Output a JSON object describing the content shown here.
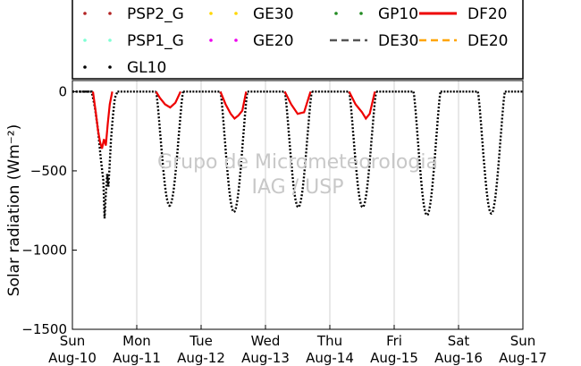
{
  "chart_data": {
    "type": "line",
    "title": "",
    "xlabel": "",
    "ylabel": "Solar radiation (Wm⁻²)",
    "ylim": [
      -1500,
      70
    ],
    "xlim": [
      0,
      7
    ],
    "yticks": [
      0,
      -500,
      -1000,
      -1500
    ],
    "xticks": [
      {
        "x": 0,
        "day": "Sun",
        "date": "Aug-10"
      },
      {
        "x": 1,
        "day": "Mon",
        "date": "Aug-11"
      },
      {
        "x": 2,
        "day": "Tue",
        "date": "Aug-12"
      },
      {
        "x": 3,
        "day": "Wed",
        "date": "Aug-13"
      },
      {
        "x": 4,
        "day": "Thu",
        "date": "Aug-14"
      },
      {
        "x": 5,
        "day": "Fri",
        "date": "Aug-15"
      },
      {
        "x": 6,
        "day": "Sat",
        "date": "Aug-16"
      },
      {
        "x": 7,
        "day": "Sun",
        "date": "Aug-17"
      }
    ],
    "grid": "vertical",
    "legend": {
      "placement": "top",
      "columns": 4,
      "entries": [
        {
          "name": "PSP2_G",
          "color": "#b22222",
          "style": "dotted"
        },
        {
          "name": "GE30",
          "color": "#ffd700",
          "style": "dotted"
        },
        {
          "name": "GP10",
          "color": "#228b22",
          "style": "dotted"
        },
        {
          "name": "DF20",
          "color": "#ee0000",
          "style": "solid"
        },
        {
          "name": "PSP1_G",
          "color": "#7fffd4",
          "style": "dotted"
        },
        {
          "name": "GE20",
          "color": "#ee00ee",
          "style": "dotted"
        },
        {
          "name": "DE30",
          "color": "#555555",
          "style": "dashed"
        },
        {
          "name": "DE20",
          "color": "#ffa500",
          "style": "dashed"
        },
        {
          "name": "GL10",
          "color": "#000000",
          "style": "dotted"
        }
      ]
    },
    "watermark": [
      "Grupo de Micrometeorologia",
      "IAG / USP"
    ],
    "series": [
      {
        "name": "GL10",
        "color": "#000000",
        "style": "dotted",
        "points": [
          [
            0.0,
            0
          ],
          [
            0.3,
            0
          ],
          [
            0.35,
            -100
          ],
          [
            0.4,
            -250
          ],
          [
            0.44,
            -420
          ],
          [
            0.48,
            -560
          ],
          [
            0.5,
            -800
          ],
          [
            0.52,
            -650
          ],
          [
            0.54,
            -520
          ],
          [
            0.56,
            -600
          ],
          [
            0.58,
            -450
          ],
          [
            0.6,
            -300
          ],
          [
            0.63,
            -150
          ],
          [
            0.66,
            -40
          ],
          [
            0.7,
            0
          ]
        ],
        "days": [
          {
            "start": 1.3,
            "peak_x": 1.5,
            "peak": -720,
            "end": 1.72
          },
          {
            "start": 2.3,
            "peak_x": 2.5,
            "peak": -760,
            "end": 2.72
          },
          {
            "start": 3.3,
            "peak_x": 3.5,
            "peak": -730,
            "end": 3.72
          },
          {
            "start": 4.3,
            "peak_x": 4.5,
            "peak": -730,
            "end": 4.72
          },
          {
            "start": 5.3,
            "peak_x": 5.5,
            "peak": -780,
            "end": 5.72
          },
          {
            "start": 6.3,
            "peak_x": 6.5,
            "peak": -770,
            "end": 6.72
          }
        ]
      },
      {
        "name": "DF20",
        "color": "#ee0000",
        "style": "solid",
        "points": [
          [
            0.32,
            0
          ],
          [
            0.36,
            -120
          ],
          [
            0.4,
            -250
          ],
          [
            0.43,
            -320
          ],
          [
            0.46,
            -360
          ],
          [
            0.49,
            -300
          ],
          [
            0.52,
            -340
          ],
          [
            0.55,
            -200
          ],
          [
            0.58,
            -80
          ],
          [
            0.62,
            0
          ],
          [
            1.3,
            0
          ],
          [
            1.36,
            -40
          ],
          [
            1.44,
            -80
          ],
          [
            1.52,
            -100
          ],
          [
            1.6,
            -70
          ],
          [
            1.68,
            0
          ],
          [
            2.3,
            0
          ],
          [
            2.38,
            -80
          ],
          [
            2.46,
            -140
          ],
          [
            2.52,
            -170
          ],
          [
            2.58,
            -150
          ],
          [
            2.64,
            -120
          ],
          [
            2.7,
            0
          ],
          [
            3.3,
            0
          ],
          [
            3.4,
            -80
          ],
          [
            3.5,
            -140
          ],
          [
            3.6,
            -130
          ],
          [
            3.7,
            0
          ],
          [
            4.3,
            0
          ],
          [
            4.4,
            -80
          ],
          [
            4.5,
            -130
          ],
          [
            4.56,
            -170
          ],
          [
            4.62,
            -140
          ],
          [
            4.7,
            0
          ]
        ]
      }
    ]
  }
}
